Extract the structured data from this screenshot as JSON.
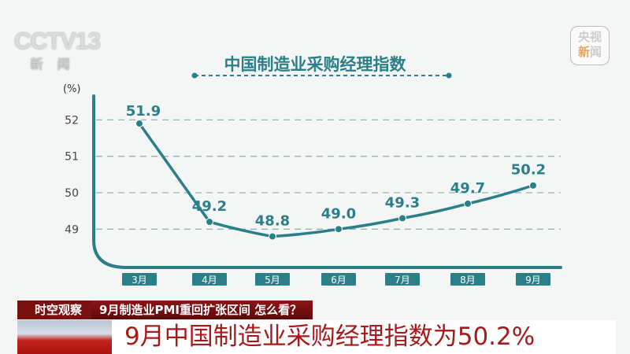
{
  "logos": {
    "left_main": "CCTV13",
    "left_sub": "新闻",
    "right_top": "央视",
    "right_bottom_a": "新",
    "right_bottom_b": "闻"
  },
  "chart_data": {
    "type": "line",
    "title": "中国制造业采购经理指数",
    "ylabel": "(%)",
    "categories": [
      "3月",
      "4月",
      "5月",
      "6月",
      "7月",
      "8月",
      "9月"
    ],
    "values": [
      51.9,
      49.2,
      48.8,
      49.0,
      49.3,
      49.7,
      50.2
    ],
    "value_labels": [
      "51.9",
      "49.2",
      "48.8",
      "49.0",
      "49.3",
      "49.7",
      "50.2"
    ],
    "yticks": [
      "49",
      "50",
      "51",
      "52"
    ],
    "ylim": [
      48.2,
      53
    ],
    "grid": true,
    "color": "#2b7f88"
  },
  "ticker": {
    "tag": "时空观察",
    "question": "9月制造业PMI重回扩张区间 怎么看？",
    "headline": "9月中国制造业采购经理指数为50.2%"
  }
}
